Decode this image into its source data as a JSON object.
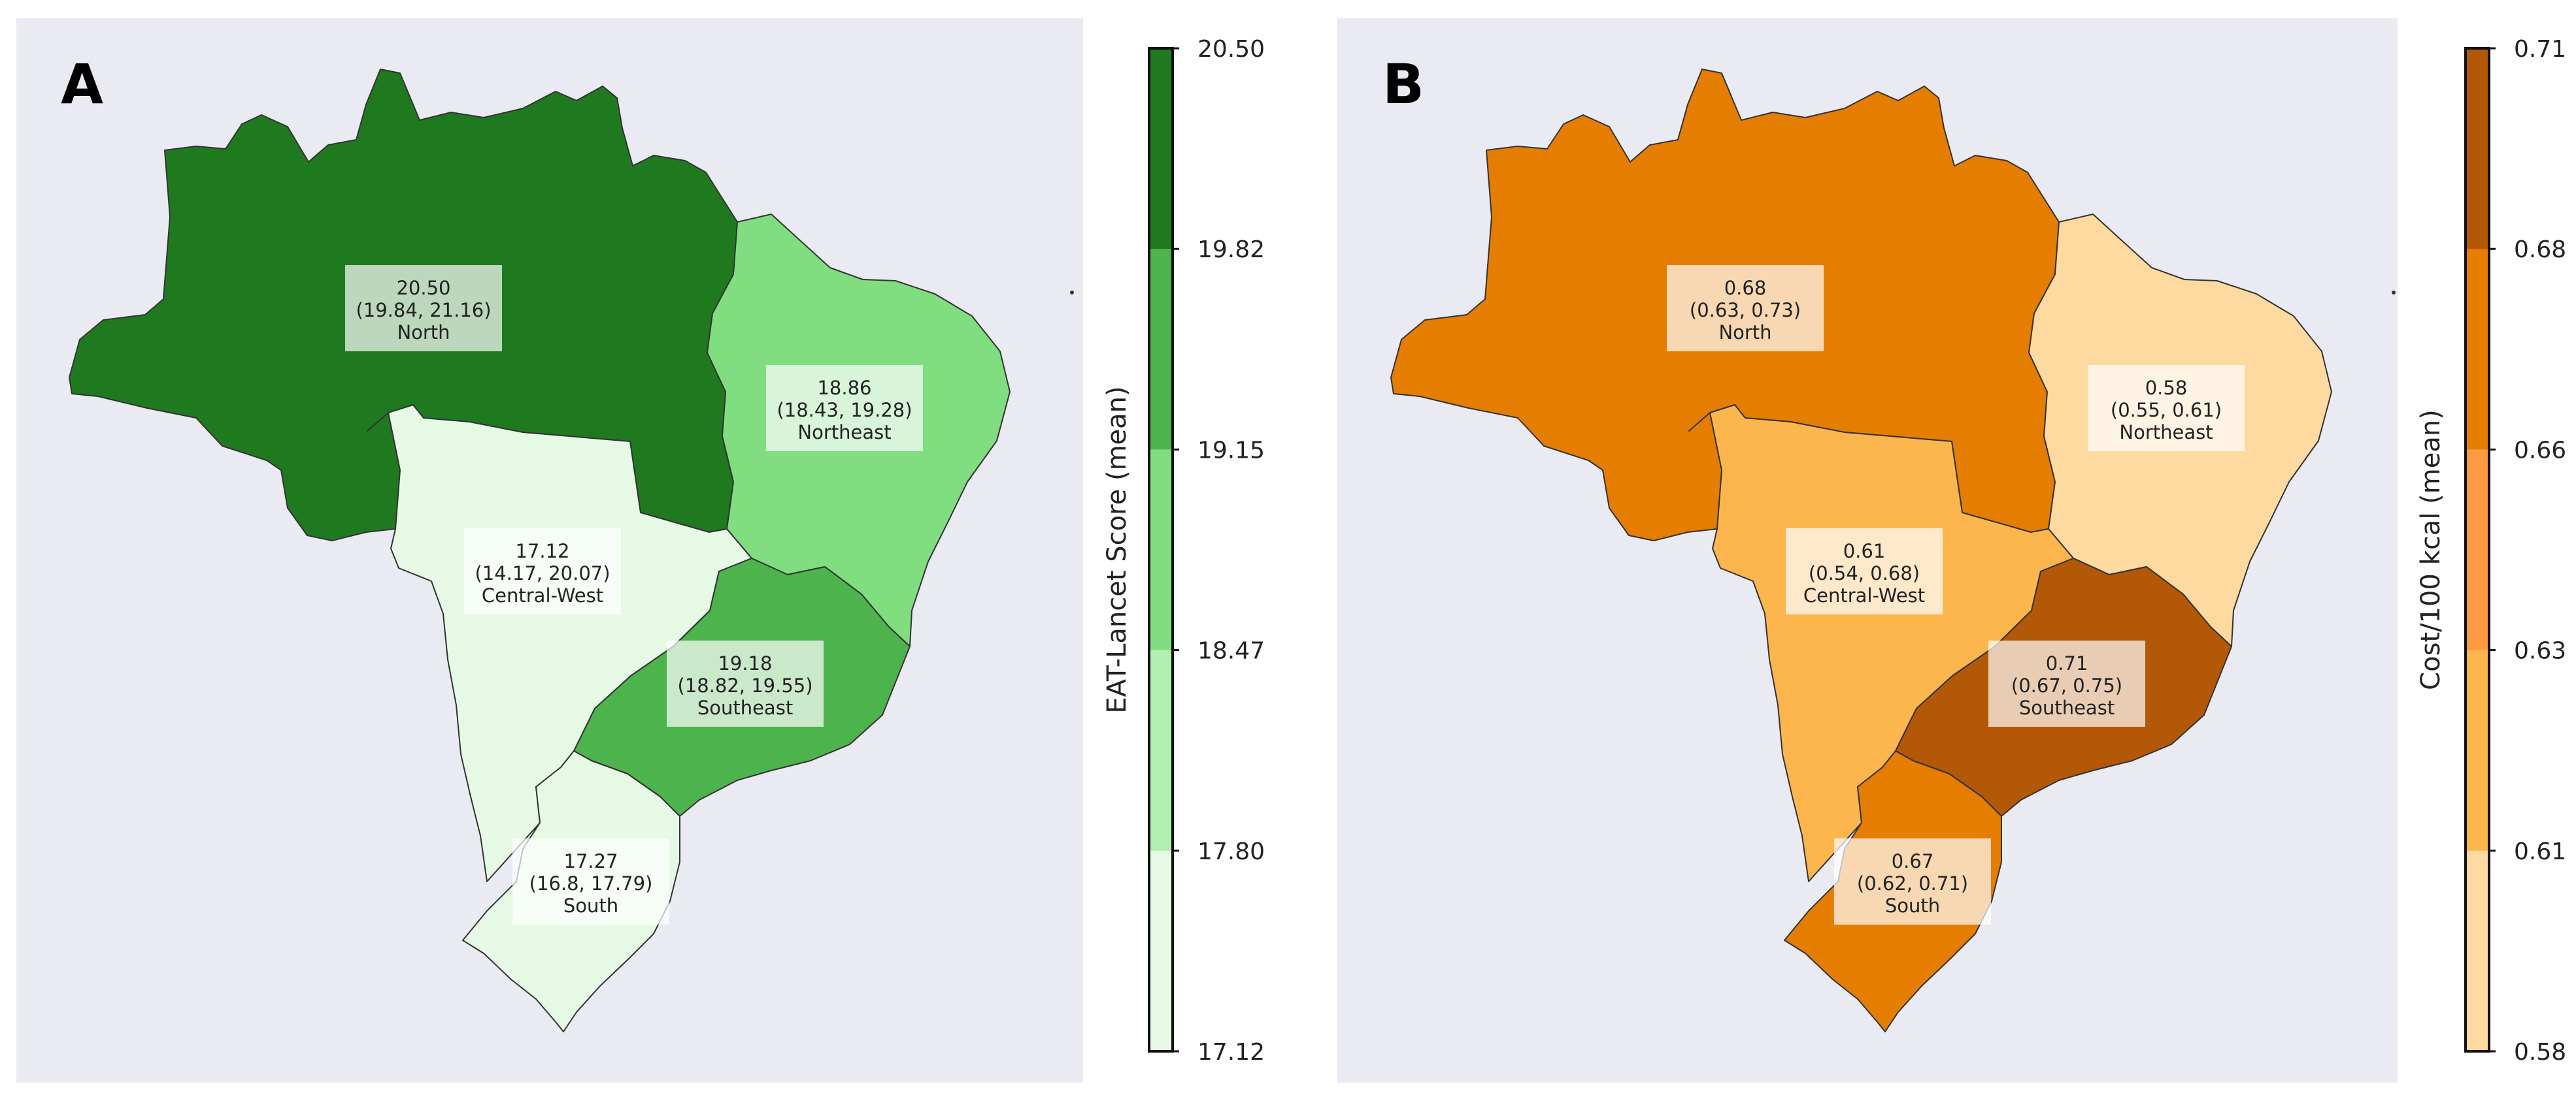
{
  "panels": [
    {
      "letter": "A",
      "colorbar": {
        "title": "EAT-Lancet Score (mean)",
        "ticks": [
          "20.50",
          "19.82",
          "19.15",
          "18.47",
          "17.80",
          "17.12"
        ],
        "colors": [
          "#1f7a1f",
          "#4db34d",
          "#80de80",
          "#b2efb2",
          "#e5f9e5"
        ]
      },
      "regions": [
        {
          "name": "North",
          "mean": "20.50",
          "ci": "(19.84, 21.16)",
          "color": "#1f7a1f"
        },
        {
          "name": "Northeast",
          "mean": "18.86",
          "ci": "(18.43, 19.28)",
          "color": "#80de80"
        },
        {
          "name": "Central-West",
          "mean": "17.12",
          "ci": "(14.17, 20.07)",
          "color": "#e5f9e5"
        },
        {
          "name": "Southeast",
          "mean": "19.18",
          "ci": "(18.82, 19.55)",
          "color": "#4db34d"
        },
        {
          "name": "South",
          "mean": "17.27",
          "ci": "(16.8, 17.79)",
          "color": "#e5f9e5"
        }
      ]
    },
    {
      "letter": "B",
      "colorbar": {
        "title": "Cost/100 kcal (mean)",
        "ticks": [
          "0.71",
          "0.68",
          "0.66",
          "0.63",
          "0.61",
          "0.58"
        ],
        "colors": [
          "#b35806",
          "#e57d00",
          "#fb9a40",
          "#fdb64d",
          "#fed9a0"
        ]
      },
      "regions": [
        {
          "name": "North",
          "mean": "0.68",
          "ci": "(0.63, 0.73)",
          "color": "#e57d00"
        },
        {
          "name": "Northeast",
          "mean": "0.58",
          "ci": "(0.55, 0.61)",
          "color": "#fed9a0"
        },
        {
          "name": "Central-West",
          "mean": "0.61",
          "ci": "(0.54, 0.68)",
          "color": "#fdb64d"
        },
        {
          "name": "Southeast",
          "mean": "0.71",
          "ci": "(0.67, 0.75)",
          "color": "#b35806"
        },
        {
          "name": "South",
          "mean": "0.67",
          "ci": "(0.62, 0.71)",
          "color": "#e57d00"
        }
      ]
    }
  ]
}
